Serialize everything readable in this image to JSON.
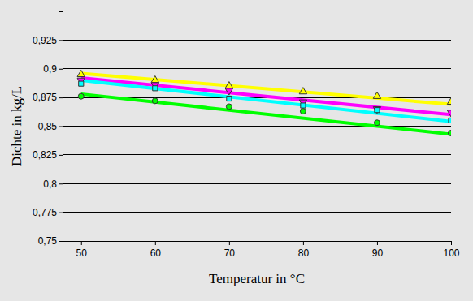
{
  "chart_data": {
    "type": "scatter",
    "x_label": "Temperatur in °C",
    "y_label": "Dichte in kg/L",
    "x": [
      50,
      60,
      70,
      80,
      90,
      100
    ],
    "series": [
      {
        "color": "#ffff00",
        "marker": "triangle-up",
        "values": [
          0.895,
          0.89,
          0.885,
          0.88,
          0.876,
          0.871
        ],
        "trend": [
          0.896,
          0.869
        ]
      },
      {
        "color": "#ff00ff",
        "marker": "triangle-down",
        "values": [
          0.89,
          0.886,
          0.881,
          0.871,
          0.865,
          0.862
        ],
        "trend": [
          0.892,
          0.86
        ]
      },
      {
        "color": "#00ffff",
        "marker": "square",
        "values": [
          0.887,
          0.883,
          0.874,
          0.868,
          0.864,
          0.855
        ],
        "trend": [
          0.89,
          0.854
        ]
      },
      {
        "color": "#00ff00",
        "marker": "circle",
        "values": [
          0.876,
          0.872,
          0.867,
          0.863,
          0.853,
          0.844
        ],
        "trend": [
          0.878,
          0.843
        ]
      }
    ],
    "xlim": [
      47.5,
      100
    ],
    "xticks": [
      50,
      60,
      70,
      80,
      90,
      100
    ],
    "ylim": [
      0.75,
      0.95
    ],
    "yticks": [
      {
        "value": 0.75,
        "label": "0,75"
      },
      {
        "value": 0.775,
        "label": "0,775"
      },
      {
        "value": 0.8,
        "label": "0,8"
      },
      {
        "value": 0.825,
        "label": "0,825"
      },
      {
        "value": 0.85,
        "label": "0,85"
      },
      {
        "value": 0.875,
        "label": "0,875"
      },
      {
        "value": 0.9,
        "label": "0,9"
      },
      {
        "value": 0.925,
        "label": "0,925"
      }
    ],
    "grid": true
  }
}
